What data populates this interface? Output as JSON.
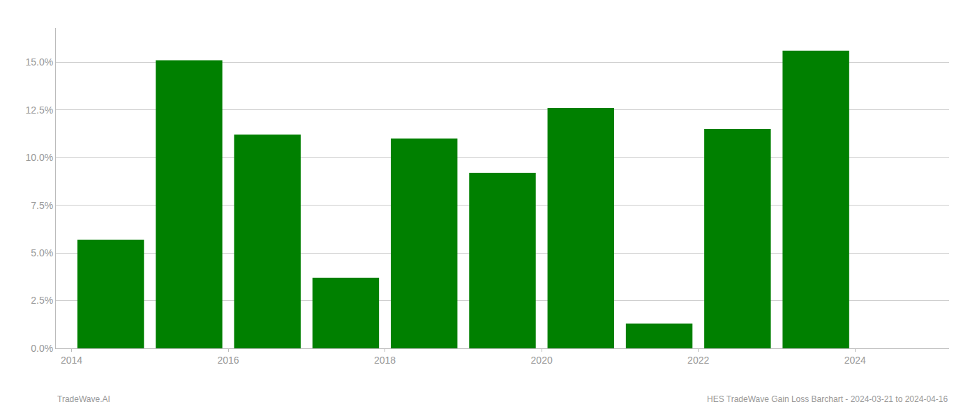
{
  "chart_data": {
    "type": "bar",
    "x": [
      2014,
      2015,
      2016,
      2017,
      2018,
      2019,
      2020,
      2021,
      2022,
      2023
    ],
    "values": [
      0.057,
      0.151,
      0.112,
      0.037,
      0.11,
      0.092,
      0.126,
      0.013,
      0.115,
      0.156
    ],
    "color": "#008000",
    "xlim": [
      2013.3,
      2024.7
    ],
    "xticks": [
      {
        "value": 2013.5,
        "label": "2014"
      },
      {
        "value": 2015.5,
        "label": "2016"
      },
      {
        "value": 2017.5,
        "label": "2018"
      },
      {
        "value": 2019.5,
        "label": "2020"
      },
      {
        "value": 2021.5,
        "label": "2022"
      },
      {
        "value": 2023.5,
        "label": "2024"
      }
    ],
    "ylim": [
      0,
      0.168
    ],
    "yticks": [
      {
        "value": 0.0,
        "label": "0.0%"
      },
      {
        "value": 0.025,
        "label": "2.5%"
      },
      {
        "value": 0.05,
        "label": "5.0%"
      },
      {
        "value": 0.075,
        "label": "7.5%"
      },
      {
        "value": 0.1,
        "label": "10.0%"
      },
      {
        "value": 0.125,
        "label": "12.5%"
      },
      {
        "value": 0.15,
        "label": "15.0%"
      }
    ],
    "grid": true,
    "annotations": [
      "TradeWave.AI",
      "HES TradeWave Gain Loss Barchart - 2024-03-21 to 2024-04-16"
    ]
  }
}
